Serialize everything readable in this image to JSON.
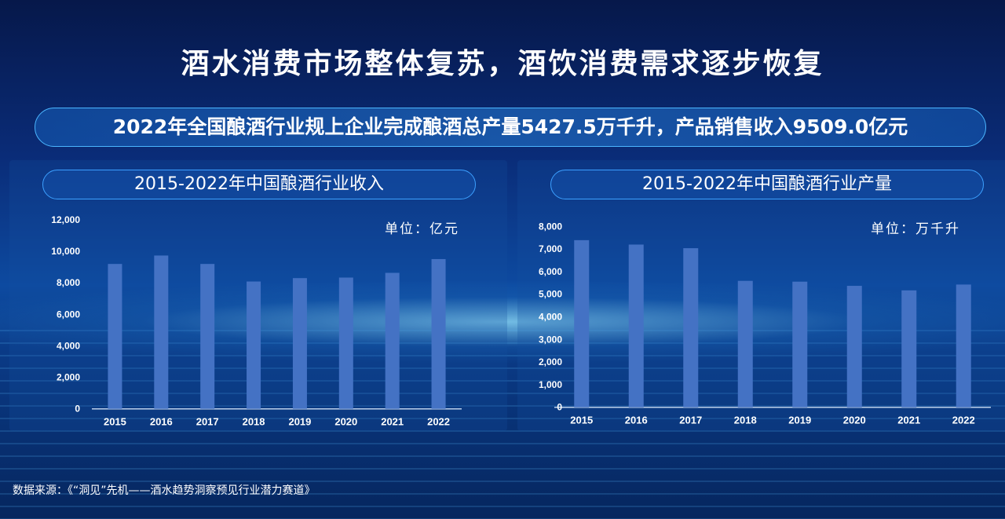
{
  "title": "酒水消费市场整体复苏，酒饮消费需求逐步恢复",
  "banner": "2022年全国酿酒行业规上企业完成酿酒总产量5427.5万千升，产品销售收入9509.0亿元",
  "source": "数据来源：《“洞见”先机——酒水趋势洞察预见行业潜力赛道》",
  "chart_data": [
    {
      "type": "bar",
      "title": "2015-2022年中国酿酒行业收入",
      "unit": "单位：亿元",
      "categories": [
        "2015",
        "2016",
        "2017",
        "2018",
        "2019",
        "2020",
        "2021",
        "2022"
      ],
      "values": [
        9200,
        9735,
        9200,
        8085,
        8300,
        8335,
        8635,
        9509
      ],
      "ylim": [
        0,
        12000
      ],
      "yticks": [
        "0",
        "2,000",
        "4,000",
        "6,000",
        "8,000",
        "10,000",
        "12,000"
      ],
      "color": "#4472c4"
    },
    {
      "type": "bar",
      "title": "2015-2022年中国酿酒行业产量",
      "unit": "单位：万千升",
      "categories": [
        "2015",
        "2016",
        "2017",
        "2018",
        "2019",
        "2020",
        "2021",
        "2022"
      ],
      "values": [
        7390,
        7195,
        7035,
        5590,
        5555,
        5370,
        5170,
        5427.5
      ],
      "ylim": [
        0,
        8000
      ],
      "yticks": [
        "0",
        "1,000",
        "2,000",
        "3,000",
        "4,000",
        "5,000",
        "6,000",
        "7,000",
        "8,000"
      ],
      "color": "#4472c4"
    }
  ]
}
